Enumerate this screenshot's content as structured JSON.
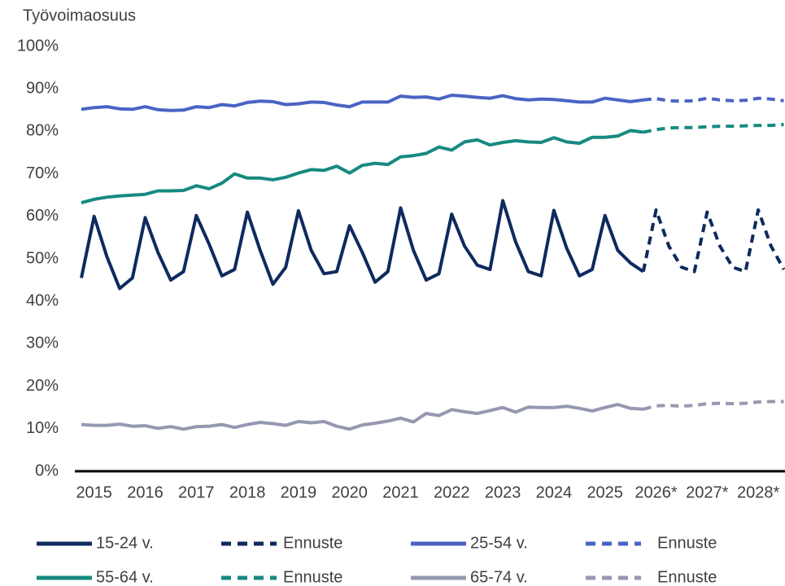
{
  "chart_data": {
    "type": "line",
    "y_label": "Työvoimaosuus",
    "categories": [
      null,
      "2015",
      null,
      null,
      null,
      "2016",
      null,
      null,
      null,
      "2017",
      null,
      null,
      null,
      "2018",
      null,
      null,
      null,
      "2019",
      null,
      null,
      null,
      "2020",
      null,
      null,
      null,
      "2021",
      null,
      null,
      null,
      "2022",
      null,
      null,
      null,
      "2023",
      null,
      null,
      null,
      "2024",
      null,
      null,
      null,
      "2025",
      null,
      null,
      null,
      "2026*",
      null,
      null,
      null,
      "2027*",
      null,
      null,
      null,
      "2028*",
      null,
      null
    ],
    "ylim": [
      0,
      100
    ],
    "yticks": [
      {
        "value": 0,
        "label": "0%"
      },
      {
        "value": 10,
        "label": "10%"
      },
      {
        "value": 20,
        "label": "20%"
      },
      {
        "value": 30,
        "label": "30%"
      },
      {
        "value": 40,
        "label": "40%"
      },
      {
        "value": 50,
        "label": "50%"
      },
      {
        "value": 60,
        "label": "60%"
      },
      {
        "value": 70,
        "label": "70%"
      },
      {
        "value": 80,
        "label": "80%"
      },
      {
        "value": 90,
        "label": "90%"
      },
      {
        "value": 100,
        "label": "100%"
      }
    ],
    "grid": false,
    "legend": "bottom",
    "series": [
      {
        "name": "15-24 v.",
        "color": "#0e2a5e",
        "dashed": false,
        "values": [
          45.5,
          60,
          50.5,
          43,
          45.5,
          59.7,
          51.5,
          45,
          47,
          60.2,
          53.5,
          46,
          47.5,
          61,
          52,
          44,
          48,
          61.3,
          52,
          46.5,
          47,
          57.8,
          51.5,
          44.5,
          47,
          62,
          52,
          45,
          46.5,
          60.5,
          53,
          48.5,
          47.5,
          63.7,
          54,
          47,
          46,
          61.4,
          52.5,
          46,
          47.5,
          60.2,
          52,
          49,
          47,
          null,
          null,
          null,
          null,
          null,
          null,
          null,
          null,
          null,
          null,
          null
        ]
      },
      {
        "name": "Ennuste",
        "color": "#0e2a5e",
        "dashed": true,
        "values": [
          null,
          null,
          null,
          null,
          null,
          null,
          null,
          null,
          null,
          null,
          null,
          null,
          null,
          null,
          null,
          null,
          null,
          null,
          null,
          null,
          null,
          null,
          null,
          null,
          null,
          null,
          null,
          null,
          null,
          null,
          null,
          null,
          null,
          null,
          null,
          null,
          null,
          null,
          null,
          null,
          null,
          null,
          null,
          null,
          47,
          61.5,
          53,
          48,
          47,
          61,
          53,
          48,
          47,
          61.5,
          53,
          47.5
        ]
      },
      {
        "name": "25-54 v.",
        "color": "#4a64c4",
        "dashed": false,
        "values": [
          85.2,
          85.6,
          85.8,
          85.3,
          85.2,
          85.8,
          85.1,
          84.9,
          85,
          85.8,
          85.6,
          86.3,
          86,
          86.8,
          87.1,
          87,
          86.3,
          86.5,
          86.9,
          86.8,
          86.2,
          85.8,
          86.9,
          86.9,
          86.9,
          88.3,
          88,
          88.1,
          87.6,
          88.5,
          88.3,
          88,
          87.8,
          88.4,
          87.7,
          87.4,
          87.6,
          87.5,
          87.2,
          86.9,
          86.9,
          87.8,
          87.4,
          87,
          87.4,
          null,
          null,
          null,
          null,
          null,
          null,
          null,
          null,
          null,
          null,
          null
        ]
      },
      {
        "name": "Ennuste",
        "color": "#4a64c4",
        "dashed": true,
        "values": [
          null,
          null,
          null,
          null,
          null,
          null,
          null,
          null,
          null,
          null,
          null,
          null,
          null,
          null,
          null,
          null,
          null,
          null,
          null,
          null,
          null,
          null,
          null,
          null,
          null,
          null,
          null,
          null,
          null,
          null,
          null,
          null,
          null,
          null,
          null,
          null,
          null,
          null,
          null,
          null,
          null,
          null,
          null,
          null,
          87.4,
          87.7,
          87.2,
          87.1,
          87.2,
          87.8,
          87.4,
          87.2,
          87.3,
          87.8,
          87.6,
          87.2
        ]
      },
      {
        "name": "55-64 v.",
        "color": "#178a80",
        "dashed": false,
        "values": [
          63.2,
          64,
          64.5,
          64.8,
          65,
          65.2,
          66,
          66,
          66.1,
          67.2,
          66.5,
          67.8,
          70,
          69,
          69,
          68.6,
          69.2,
          70.2,
          71,
          70.8,
          71.8,
          70.2,
          72,
          72.5,
          72.2,
          74,
          74.3,
          74.8,
          76.3,
          75.6,
          77.5,
          78,
          76.8,
          77.4,
          77.8,
          77.5,
          77.4,
          78.5,
          77.5,
          77.2,
          78.6,
          78.6,
          78.9,
          80.2,
          79.8,
          null,
          null,
          null,
          null,
          null,
          null,
          null,
          null,
          null,
          null,
          null
        ]
      },
      {
        "name": "Ennuste",
        "color": "#178a80",
        "dashed": true,
        "values": [
          null,
          null,
          null,
          null,
          null,
          null,
          null,
          null,
          null,
          null,
          null,
          null,
          null,
          null,
          null,
          null,
          null,
          null,
          null,
          null,
          null,
          null,
          null,
          null,
          null,
          null,
          null,
          null,
          null,
          null,
          null,
          null,
          null,
          null,
          null,
          null,
          null,
          null,
          null,
          null,
          null,
          null,
          null,
          null,
          79.8,
          80.4,
          80.8,
          80.9,
          80.9,
          81.1,
          81.2,
          81.2,
          81.3,
          81.4,
          81.4,
          81.6
        ]
      },
      {
        "name": "65-74 v.",
        "color": "#9598b0",
        "dashed": false,
        "values": [
          11,
          10.8,
          10.8,
          11.1,
          10.6,
          10.7,
          10.1,
          10.5,
          9.9,
          10.5,
          10.6,
          11,
          10.3,
          11,
          11.5,
          11.2,
          10.8,
          11.7,
          11.4,
          11.7,
          10.6,
          9.9,
          10.9,
          11.3,
          11.8,
          12.5,
          11.6,
          13.6,
          13.1,
          14.5,
          14,
          13.6,
          14.3,
          15,
          13.9,
          15.1,
          15,
          15,
          15.3,
          14.8,
          14.2,
          15,
          15.7,
          14.8,
          14.6,
          null,
          null,
          null,
          null,
          null,
          null,
          null,
          null,
          null,
          null,
          null
        ]
      },
      {
        "name": "Ennuste",
        "color": "#9598b0",
        "dashed": true,
        "values": [
          null,
          null,
          null,
          null,
          null,
          null,
          null,
          null,
          null,
          null,
          null,
          null,
          null,
          null,
          null,
          null,
          null,
          null,
          null,
          null,
          null,
          null,
          null,
          null,
          null,
          null,
          null,
          null,
          null,
          null,
          null,
          null,
          null,
          null,
          null,
          null,
          null,
          null,
          null,
          null,
          null,
          null,
          null,
          null,
          14.6,
          15.4,
          15.5,
          15.3,
          15.5,
          15.9,
          16,
          15.9,
          16,
          16.3,
          16.4,
          16.4
        ]
      }
    ]
  }
}
